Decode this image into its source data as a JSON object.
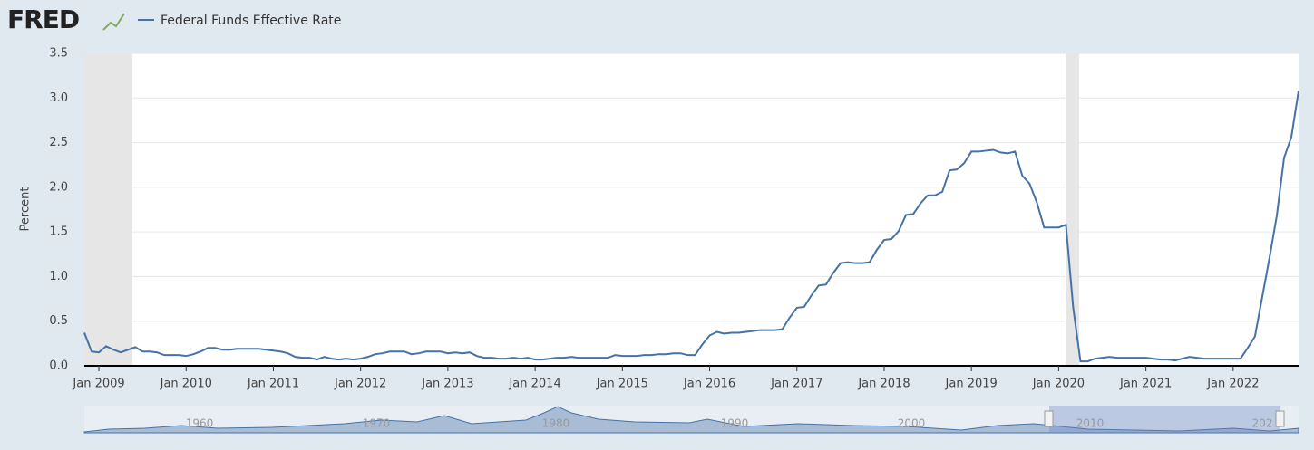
{
  "logo": "FRED",
  "navigator_labels": [
    "1960",
    "1970",
    "1980",
    "1990",
    "2000",
    "2010",
    "202"
  ],
  "chart_data": {
    "type": "line",
    "y_label": "Percent",
    "x": [
      "2008-11",
      "2008-12",
      "2009-01",
      "2009-02",
      "2009-03",
      "2009-04",
      "2009-05",
      "2009-06",
      "2009-07",
      "2009-08",
      "2009-09",
      "2009-10",
      "2009-11",
      "2009-12",
      "2010-01",
      "2010-02",
      "2010-03",
      "2010-04",
      "2010-05",
      "2010-06",
      "2010-07",
      "2010-08",
      "2010-09",
      "2010-10",
      "2010-11",
      "2010-12",
      "2011-01",
      "2011-02",
      "2011-03",
      "2011-04",
      "2011-05",
      "2011-06",
      "2011-07",
      "2011-08",
      "2011-09",
      "2011-10",
      "2011-11",
      "2011-12",
      "2012-01",
      "2012-02",
      "2012-03",
      "2012-04",
      "2012-05",
      "2012-06",
      "2012-07",
      "2012-08",
      "2012-09",
      "2012-10",
      "2012-11",
      "2012-12",
      "2013-01",
      "2013-02",
      "2013-03",
      "2013-04",
      "2013-05",
      "2013-06",
      "2013-07",
      "2013-08",
      "2013-09",
      "2013-10",
      "2013-11",
      "2013-12",
      "2014-01",
      "2014-02",
      "2014-03",
      "2014-04",
      "2014-05",
      "2014-06",
      "2014-07",
      "2014-08",
      "2014-09",
      "2014-10",
      "2014-11",
      "2014-12",
      "2015-01",
      "2015-02",
      "2015-03",
      "2015-04",
      "2015-05",
      "2015-06",
      "2015-07",
      "2015-08",
      "2015-09",
      "2015-10",
      "2015-11",
      "2015-12",
      "2016-01",
      "2016-02",
      "2016-03",
      "2016-04",
      "2016-05",
      "2016-06",
      "2016-07",
      "2016-08",
      "2016-09",
      "2016-10",
      "2016-11",
      "2016-12",
      "2017-01",
      "2017-02",
      "2017-03",
      "2017-04",
      "2017-05",
      "2017-06",
      "2017-07",
      "2017-08",
      "2017-09",
      "2017-10",
      "2017-11",
      "2017-12",
      "2018-01",
      "2018-02",
      "2018-03",
      "2018-04",
      "2018-05",
      "2018-06",
      "2018-07",
      "2018-08",
      "2018-09",
      "2018-10",
      "2018-11",
      "2018-12",
      "2019-01",
      "2019-02",
      "2019-03",
      "2019-04",
      "2019-05",
      "2019-06",
      "2019-07",
      "2019-08",
      "2019-09",
      "2019-10",
      "2019-11",
      "2019-12",
      "2020-01",
      "2020-02",
      "2020-03",
      "2020-04",
      "2020-05",
      "2020-06",
      "2020-07",
      "2020-08",
      "2020-09",
      "2020-10",
      "2020-11",
      "2020-12",
      "2021-01",
      "2021-02",
      "2021-03",
      "2021-04",
      "2021-05",
      "2021-06",
      "2021-07",
      "2021-08",
      "2021-09",
      "2021-10",
      "2021-11",
      "2021-12",
      "2022-01",
      "2022-02",
      "2022-03",
      "2022-04",
      "2022-05",
      "2022-06",
      "2022-07",
      "2022-08",
      "2022-09",
      "2022-10"
    ],
    "series": [
      {
        "name": "Federal Funds Effective Rate",
        "color": "#4572a7",
        "values": [
          0.37,
          0.16,
          0.15,
          0.22,
          0.18,
          0.15,
          0.18,
          0.21,
          0.16,
          0.16,
          0.15,
          0.12,
          0.12,
          0.12,
          0.11,
          0.13,
          0.16,
          0.2,
          0.2,
          0.18,
          0.18,
          0.19,
          0.19,
          0.19,
          0.19,
          0.18,
          0.17,
          0.16,
          0.14,
          0.1,
          0.09,
          0.09,
          0.07,
          0.1,
          0.08,
          0.07,
          0.08,
          0.07,
          0.08,
          0.1,
          0.13,
          0.14,
          0.16,
          0.16,
          0.16,
          0.13,
          0.14,
          0.16,
          0.16,
          0.16,
          0.14,
          0.15,
          0.14,
          0.15,
          0.11,
          0.09,
          0.09,
          0.08,
          0.08,
          0.09,
          0.08,
          0.09,
          0.07,
          0.07,
          0.08,
          0.09,
          0.09,
          0.1,
          0.09,
          0.09,
          0.09,
          0.09,
          0.09,
          0.12,
          0.11,
          0.11,
          0.11,
          0.12,
          0.12,
          0.13,
          0.13,
          0.14,
          0.14,
          0.12,
          0.12,
          0.24,
          0.34,
          0.38,
          0.36,
          0.37,
          0.37,
          0.38,
          0.39,
          0.4,
          0.4,
          0.4,
          0.41,
          0.54,
          0.65,
          0.66,
          0.79,
          0.9,
          0.91,
          1.04,
          1.15,
          1.16,
          1.15,
          1.15,
          1.16,
          1.3,
          1.41,
          1.42,
          1.51,
          1.69,
          1.7,
          1.82,
          1.91,
          1.91,
          1.95,
          2.19,
          2.2,
          2.27,
          2.4,
          2.4,
          2.41,
          2.42,
          2.39,
          2.38,
          2.4,
          2.13,
          2.04,
          1.83,
          1.55,
          1.55,
          1.55,
          1.58,
          0.65,
          0.05,
          0.05,
          0.08,
          0.09,
          0.1,
          0.09,
          0.09,
          0.09,
          0.09,
          0.09,
          0.08,
          0.07,
          0.07,
          0.06,
          0.08,
          0.1,
          0.09,
          0.08,
          0.08,
          0.08,
          0.08,
          0.08,
          0.08,
          0.2,
          0.33,
          0.77,
          1.21,
          1.68,
          2.33,
          2.56,
          3.08
        ]
      }
    ],
    "xlim": [
      "2008-11",
      "2022-10"
    ],
    "xticks": [
      {
        "value": "2009-01",
        "label": "Jan 2009"
      },
      {
        "value": "2010-01",
        "label": "Jan 2010"
      },
      {
        "value": "2011-01",
        "label": "Jan 2011"
      },
      {
        "value": "2012-01",
        "label": "Jan 2012"
      },
      {
        "value": "2013-01",
        "label": "Jan 2013"
      },
      {
        "value": "2014-01",
        "label": "Jan 2014"
      },
      {
        "value": "2015-01",
        "label": "Jan 2015"
      },
      {
        "value": "2016-01",
        "label": "Jan 2016"
      },
      {
        "value": "2017-01",
        "label": "Jan 2017"
      },
      {
        "value": "2018-01",
        "label": "Jan 2018"
      },
      {
        "value": "2019-01",
        "label": "Jan 2019"
      },
      {
        "value": "2020-01",
        "label": "Jan 2020"
      },
      {
        "value": "2021-01",
        "label": "Jan 2021"
      },
      {
        "value": "2022-01",
        "label": "Jan 2022"
      }
    ],
    "ylim": [
      0,
      3.5
    ],
    "yticks": [
      {
        "value": 0,
        "label": "0.0"
      },
      0.5,
      {
        "value": 1,
        "label": "1.0"
      },
      1.5,
      {
        "value": 2,
        "label": "2.0"
      },
      2.5,
      {
        "value": 3,
        "label": "3.0"
      },
      3.5
    ],
    "grid": true
  }
}
